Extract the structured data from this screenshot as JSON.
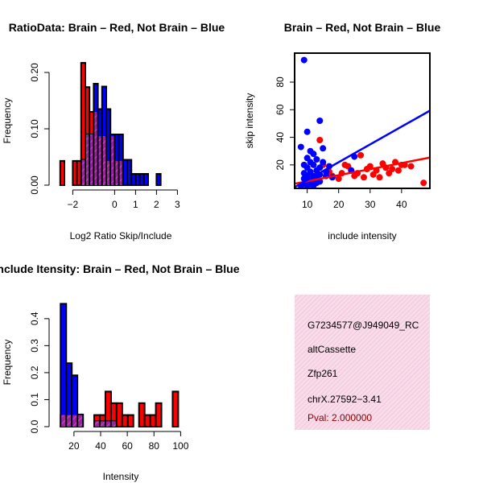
{
  "colors": {
    "red": "#ff0000",
    "blue": "#0000ff",
    "overlap": "#a020a0",
    "pval": "#8b0000",
    "panel_bg": "#f8dcea",
    "panel_hatch": "#f0b8d4"
  },
  "chart_data": [
    {
      "id": "ratio_hist",
      "type": "histogram",
      "title": "RatioData: Brain – Red, Not Brain – Blue",
      "xlabel": "Log2 Ratio Skip/Include",
      "ylabel": "Frequency",
      "xlim": [
        -2.9,
        3.6
      ],
      "ylim": [
        0,
        0.23
      ],
      "xticks": [
        -2,
        0,
        1,
        2,
        3
      ],
      "xtick_labels": [
        "−2",
        "0",
        "1",
        "2",
        "3"
      ],
      "yticks": [
        0.0,
        0.1,
        0.2
      ],
      "ytick_labels": [
        "0.00",
        "0.10",
        "0.20"
      ],
      "bin_start": -2.6,
      "bin_width": 0.2,
      "series": [
        {
          "name": "Brain",
          "color": "red",
          "values": [
            0.043,
            0,
            0,
            0.043,
            0.043,
            0.217,
            0.174,
            0.13,
            0.13,
            0.087,
            0.087,
            0.043,
            0.087,
            0.043,
            0.043,
            0,
            0,
            0,
            0,
            0,
            0,
            0,
            0,
            0,
            0,
            0,
            0,
            0,
            0,
            0,
            0,
            0
          ]
        },
        {
          "name": "Not Brain",
          "color": "blue",
          "values": [
            0,
            0,
            0,
            0,
            0,
            0.045,
            0.09,
            0.09,
            0.18,
            0.135,
            0.175,
            0.135,
            0.09,
            0.09,
            0.09,
            0.045,
            0.045,
            0.02,
            0.02,
            0.02,
            0.02,
            0,
            0,
            0.02,
            0,
            0,
            0,
            0,
            0,
            0,
            0,
            0
          ]
        }
      ]
    },
    {
      "id": "scatter",
      "type": "scatter",
      "title": "Brain – Red, Not Brain – Blue",
      "xlabel": "include intensity",
      "ylabel": "skip intensity",
      "xlim": [
        6,
        49
      ],
      "ylim": [
        3,
        101
      ],
      "xticks": [
        10,
        20,
        30,
        40
      ],
      "yticks": [
        20,
        40,
        60,
        80
      ],
      "series": [
        {
          "name": "Brain",
          "color": "red",
          "points": [
            [
              10,
              9
            ],
            [
              11,
              10
            ],
            [
              12,
              11
            ],
            [
              13,
              12
            ],
            [
              14,
              38
            ],
            [
              15,
              20
            ],
            [
              16,
              12
            ],
            [
              17,
              15
            ],
            [
              18,
              12
            ],
            [
              20,
              10
            ],
            [
              21,
              14
            ],
            [
              22,
              20
            ],
            [
              23,
              19
            ],
            [
              24,
              16
            ],
            [
              25,
              12
            ],
            [
              26,
              14
            ],
            [
              27,
              27
            ],
            [
              28,
              11
            ],
            [
              29,
              17
            ],
            [
              30,
              19
            ],
            [
              31,
              13
            ],
            [
              32,
              16
            ],
            [
              33,
              11
            ],
            [
              34,
              21
            ],
            [
              35,
              18
            ],
            [
              36,
              14
            ],
            [
              37,
              17
            ],
            [
              38,
              22
            ],
            [
              39,
              16
            ],
            [
              40,
              20
            ],
            [
              41,
              20
            ],
            [
              43,
              19
            ],
            [
              47,
              7
            ]
          ],
          "fit_line": [
            [
              6,
              6.4
            ],
            [
              49,
              25.3
            ]
          ]
        },
        {
          "name": "Not Brain",
          "color": "blue",
          "points": [
            [
              8,
              33
            ],
            [
              9,
              96
            ],
            [
              9,
              10
            ],
            [
              9,
              14
            ],
            [
              9,
              20
            ],
            [
              10,
              44
            ],
            [
              10,
              25
            ],
            [
              10,
              8
            ],
            [
              10,
              12
            ],
            [
              10,
              18
            ],
            [
              11,
              30
            ],
            [
              11,
              22
            ],
            [
              11,
              15
            ],
            [
              11,
              9
            ],
            [
              12,
              28
            ],
            [
              12,
              20
            ],
            [
              12,
              12
            ],
            [
              12,
              7
            ],
            [
              13,
              24
            ],
            [
              13,
              16
            ],
            [
              13,
              10
            ],
            [
              14,
              52
            ],
            [
              14,
              18
            ],
            [
              14,
              13
            ],
            [
              15,
              32
            ],
            [
              15,
              22
            ],
            [
              16,
              15
            ],
            [
              16,
              12
            ],
            [
              17,
              19
            ],
            [
              18,
              11
            ],
            [
              8,
              5
            ],
            [
              9,
              6
            ],
            [
              10,
              5
            ],
            [
              11,
              6
            ],
            [
              12,
              5
            ],
            [
              13,
              7
            ],
            [
              14,
              8
            ],
            [
              24,
              16
            ],
            [
              25,
              26
            ]
          ],
          "fit_line": [
            [
              6,
              3.9
            ],
            [
              49,
              59.3
            ]
          ]
        }
      ]
    },
    {
      "id": "intensity_hist",
      "type": "histogram",
      "title": "Include Itensity: Brain – Red, Not Brain – Blue",
      "xlabel": "Intensity",
      "ylabel": "Frequency",
      "xlim": [
        5,
        107
      ],
      "ylim": [
        0,
        0.48
      ],
      "xticks": [
        20,
        40,
        60,
        80,
        100
      ],
      "xtick_labels": [
        "20",
        "40",
        "60",
        "80",
        "100"
      ],
      "yticks": [
        0.0,
        0.1,
        0.2,
        0.3,
        0.4
      ],
      "ytick_labels": [
        "0.0",
        "0.1",
        "0.2",
        "0.3",
        "0.4"
      ],
      "bin_start": 10,
      "bin_width": 4.2,
      "series": [
        {
          "name": "Brain",
          "color": "red",
          "values": [
            0.043,
            0.043,
            0.043,
            0.043,
            0,
            0,
            0.043,
            0.043,
            0.13,
            0.087,
            0.087,
            0.043,
            0.043,
            0,
            0.087,
            0.043,
            0.043,
            0.087,
            0,
            0,
            0.13
          ]
        },
        {
          "name": "Not Brain",
          "color": "blue",
          "values": [
            0.455,
            0.235,
            0.19,
            0.045,
            0,
            0,
            0.02,
            0.02,
            0.02,
            0.02,
            0,
            0,
            0,
            0,
            0,
            0,
            0,
            0,
            0,
            0,
            0
          ]
        }
      ]
    }
  ],
  "info_panel": {
    "lines": [
      "G7234577@J949049_RC",
      "altCassette",
      "Zfp261",
      "chrX.27592−3.41"
    ],
    "pval": "Pval: 2.000000"
  }
}
